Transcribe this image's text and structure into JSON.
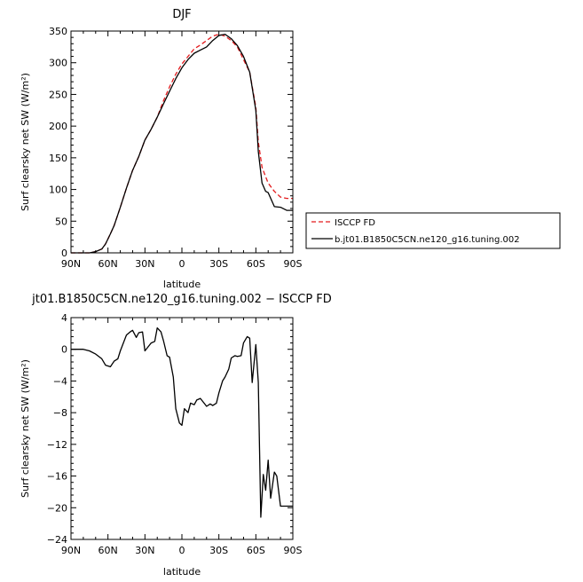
{
  "colors": {
    "model": "#000000",
    "obs": "#e31a1c",
    "axis": "#000000",
    "background": "#ffffff"
  },
  "chart_data": [
    {
      "type": "line",
      "title": "DJF",
      "xlabel": "latitude",
      "ylabel": "Surf clearsky net SW (W/m²)",
      "xlim": [
        90,
        -90
      ],
      "ylim": [
        0,
        350
      ],
      "x_ticks": [
        90,
        60,
        30,
        0,
        -30,
        -60,
        -90
      ],
      "x_tick_labels": [
        "90N",
        "60N",
        "30N",
        "0",
        "30S",
        "60S",
        "90S"
      ],
      "y_ticks": [
        0,
        50,
        100,
        150,
        200,
        250,
        300,
        350
      ],
      "y_tick_labels": [
        "0",
        "50",
        "100",
        "150",
        "200",
        "250",
        "300",
        "350"
      ],
      "grid": false,
      "legend_position": "right-bottom",
      "series": [
        {
          "name": "ISCCP FD",
          "color": "#e31a1c",
          "style": "dashed",
          "x": [
            90,
            85,
            80,
            75,
            70,
            65,
            62,
            58,
            55,
            50,
            45,
            40,
            35,
            30,
            25,
            20,
            15,
            10,
            5,
            0,
            -5,
            -10,
            -15,
            -20,
            -25,
            -30,
            -35,
            -40,
            -45,
            -50,
            -55,
            -60,
            -62,
            -65,
            -68,
            -70,
            -75,
            -80,
            -85,
            -90
          ],
          "y": [
            0,
            0,
            0,
            0,
            2,
            6,
            14,
            30,
            43,
            72,
            102,
            130,
            152,
            178,
            195,
            214,
            240,
            262,
            282,
            298,
            310,
            322,
            328,
            335,
            342,
            345,
            342,
            335,
            325,
            305,
            285,
            230,
            175,
            135,
            120,
            110,
            97,
            88,
            86,
            86
          ]
        },
        {
          "name": "b.jt01.B1850C5CN.ne120_g16.tuning.002",
          "color": "#000000",
          "style": "solid",
          "x": [
            90,
            85,
            80,
            75,
            70,
            65,
            62,
            58,
            55,
            50,
            45,
            40,
            35,
            30,
            25,
            20,
            15,
            10,
            5,
            0,
            -5,
            -10,
            -15,
            -20,
            -25,
            -30,
            -35,
            -40,
            -45,
            -50,
            -55,
            -60,
            -62,
            -65,
            -68,
            -70,
            -75,
            -80,
            -85,
            -90
          ],
          "y": [
            0,
            0,
            0,
            0,
            2,
            6,
            14,
            30,
            43,
            72,
            102,
            130,
            152,
            178,
            195,
            214,
            235,
            255,
            275,
            292,
            305,
            315,
            320,
            325,
            335,
            343,
            345,
            338,
            327,
            310,
            285,
            225,
            160,
            110,
            97,
            95,
            73,
            72,
            67,
            67
          ]
        }
      ]
    },
    {
      "type": "line",
      "title": "jt01.B1850C5CN.ne120_g16.tuning.002 − ISCCP FD",
      "xlabel": "latitude",
      "ylabel": "Surf clearsky net SW (W/m²)",
      "xlim": [
        90,
        -90
      ],
      "ylim": [
        -24,
        4
      ],
      "x_ticks": [
        90,
        60,
        30,
        0,
        -30,
        -60,
        -90
      ],
      "x_tick_labels": [
        "90N",
        "60N",
        "30N",
        "0",
        "30S",
        "60S",
        "90S"
      ],
      "y_ticks": [
        4,
        0,
        -4,
        -8,
        -12,
        -16,
        -20,
        -24
      ],
      "y_tick_labels": [
        "4",
        "0",
        "−4",
        "−8",
        "−12",
        "−16",
        "−20",
        "−24"
      ],
      "grid": false,
      "series": [
        {
          "color": "#000000",
          "style": "solid",
          "x": [
            90,
            85,
            80,
            75,
            70,
            65,
            62,
            58,
            55,
            52,
            50,
            45,
            42,
            40,
            37,
            35,
            32,
            30,
            25,
            22,
            20,
            17,
            15,
            12,
            10,
            7,
            5,
            2,
            0,
            -2,
            -5,
            -7,
            -10,
            -12,
            -15,
            -18,
            -20,
            -23,
            -25,
            -28,
            -30,
            -33,
            -35,
            -38,
            -40,
            -43,
            -45,
            -48,
            -50,
            -53,
            -55,
            -57,
            -60,
            -62,
            -64,
            -66,
            -68,
            -70,
            -72,
            -75,
            -77,
            -80,
            -82,
            -85,
            -87,
            -90
          ],
          "y": [
            0,
            0,
            0,
            -0.2,
            -0.6,
            -1.2,
            -2,
            -2.2,
            -1.5,
            -1.2,
            -0.2,
            1.8,
            2.2,
            2.4,
            1.5,
            2.1,
            2.2,
            -0.2,
            0.8,
            1.0,
            2.7,
            2.2,
            1.1,
            -0.8,
            -1.0,
            -3.5,
            -7.5,
            -9.3,
            -9.6,
            -7.5,
            -8,
            -6.8,
            -7.0,
            -6.4,
            -6.2,
            -6.8,
            -7.2,
            -6.9,
            -7.1,
            -6.8,
            -5.5,
            -4,
            -3.5,
            -2.5,
            -1.1,
            -0.8,
            -0.9,
            -0.8,
            0.8,
            1.6,
            1.4,
            -4.2,
            0.6,
            -4.2,
            -21.2,
            -15.8,
            -17.8,
            -14.0,
            -18.8,
            -15.5,
            -16,
            -19.8,
            -19.8,
            -19.8,
            -19.8,
            -19.8
          ]
        }
      ]
    }
  ]
}
